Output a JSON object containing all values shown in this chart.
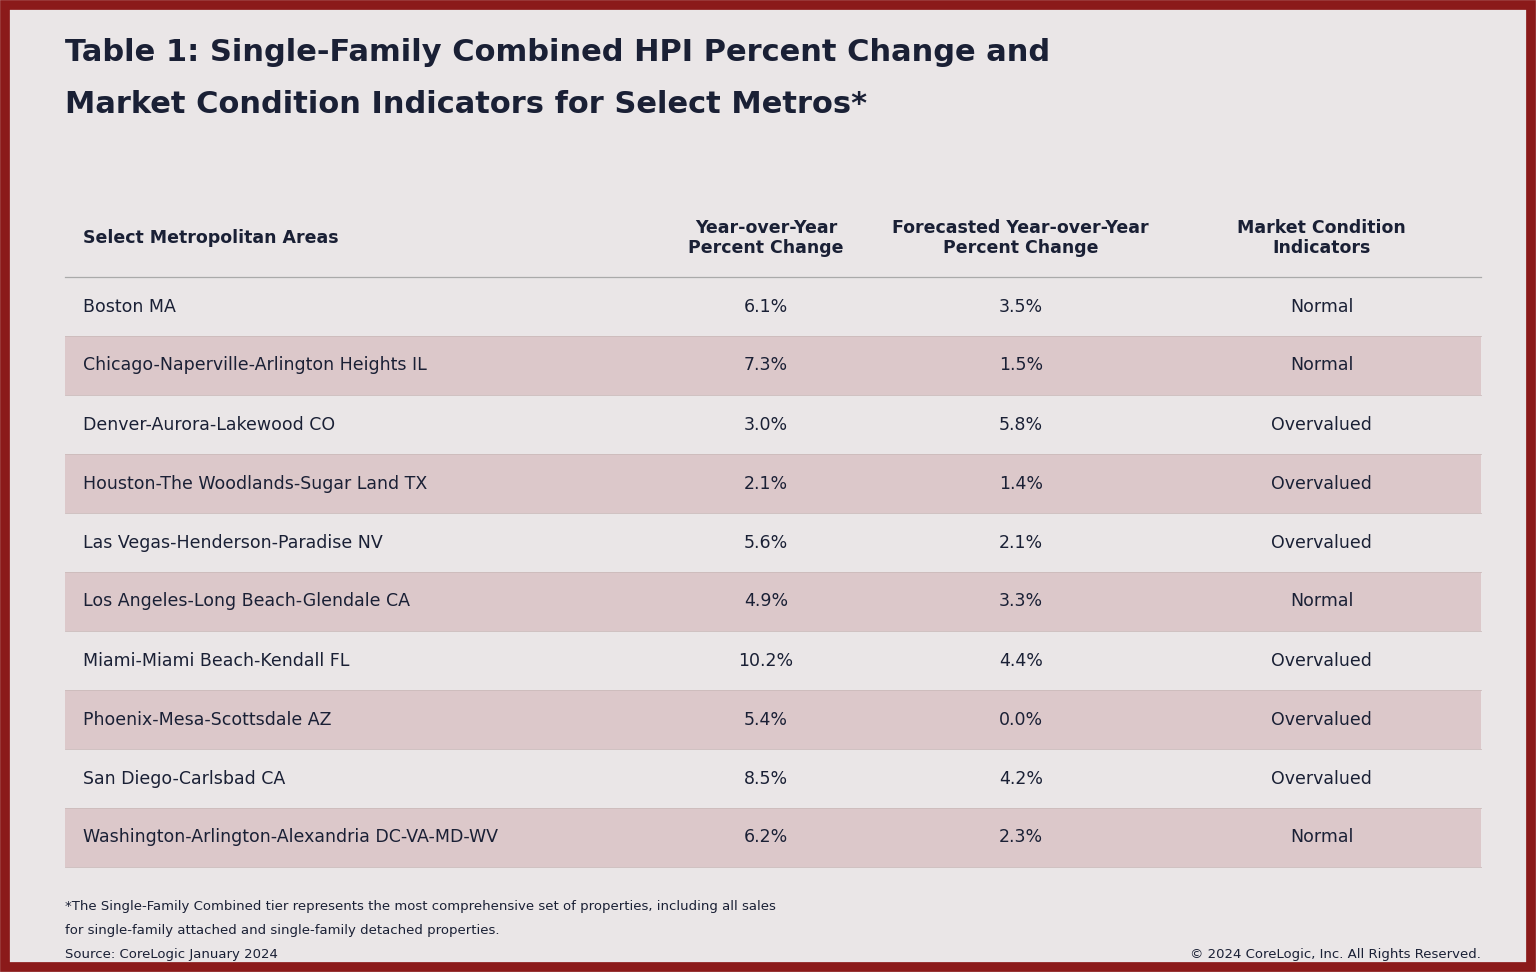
{
  "title_line1": "Table 1: Single-Family Combined HPI Percent Change and",
  "title_line2": "Market Condition Indicators for Select Metros*",
  "col_headers": [
    "Select Metropolitan Areas",
    "Year-over-Year\nPercent Change",
    "Forecasted Year-over-Year\nPercent Change",
    "Market Condition\nIndicators"
  ],
  "rows": [
    [
      "Boston MA",
      "6.1%",
      "3.5%",
      "Normal"
    ],
    [
      "Chicago-Naperville-Arlington Heights IL",
      "7.3%",
      "1.5%",
      "Normal"
    ],
    [
      "Denver-Aurora-Lakewood CO",
      "3.0%",
      "5.8%",
      "Overvalued"
    ],
    [
      "Houston-The Woodlands-Sugar Land TX",
      "2.1%",
      "1.4%",
      "Overvalued"
    ],
    [
      "Las Vegas-Henderson-Paradise NV",
      "5.6%",
      "2.1%",
      "Overvalued"
    ],
    [
      "Los Angeles-Long Beach-Glendale CA",
      "4.9%",
      "3.3%",
      "Normal"
    ],
    [
      "Miami-Miami Beach-Kendall FL",
      "10.2%",
      "4.4%",
      "Overvalued"
    ],
    [
      "Phoenix-Mesa-Scottsdale AZ",
      "5.4%",
      "0.0%",
      "Overvalued"
    ],
    [
      "San Diego-Carlsbad CA",
      "8.5%",
      "4.2%",
      "Overvalued"
    ],
    [
      "Washington-Arlington-Alexandria DC-VA-MD-WV",
      "6.2%",
      "2.3%",
      "Normal"
    ]
  ],
  "row_shading": [
    false,
    true,
    false,
    true,
    false,
    true,
    false,
    true,
    false,
    true
  ],
  "bg_color": "#eae6e7",
  "shaded_row_color": "#dcc8ca",
  "unshaded_row_color": "#eae6e7",
  "border_color": "#8b1a1a",
  "title_color": "#1a2035",
  "text_color": "#1a2035",
  "header_sep_color": "#aaaaaa",
  "row_sep_color": "#ccbbbb",
  "footnote_line1": "*The Single-Family Combined tier represents the most comprehensive set of properties, including all sales",
  "footnote_line2": "for single-family attached and single-family detached properties.",
  "footnote_line3": "Source: CoreLogic January 2024",
  "copyright": "© 2024 CoreLogic, Inc. All Rights Reserved."
}
